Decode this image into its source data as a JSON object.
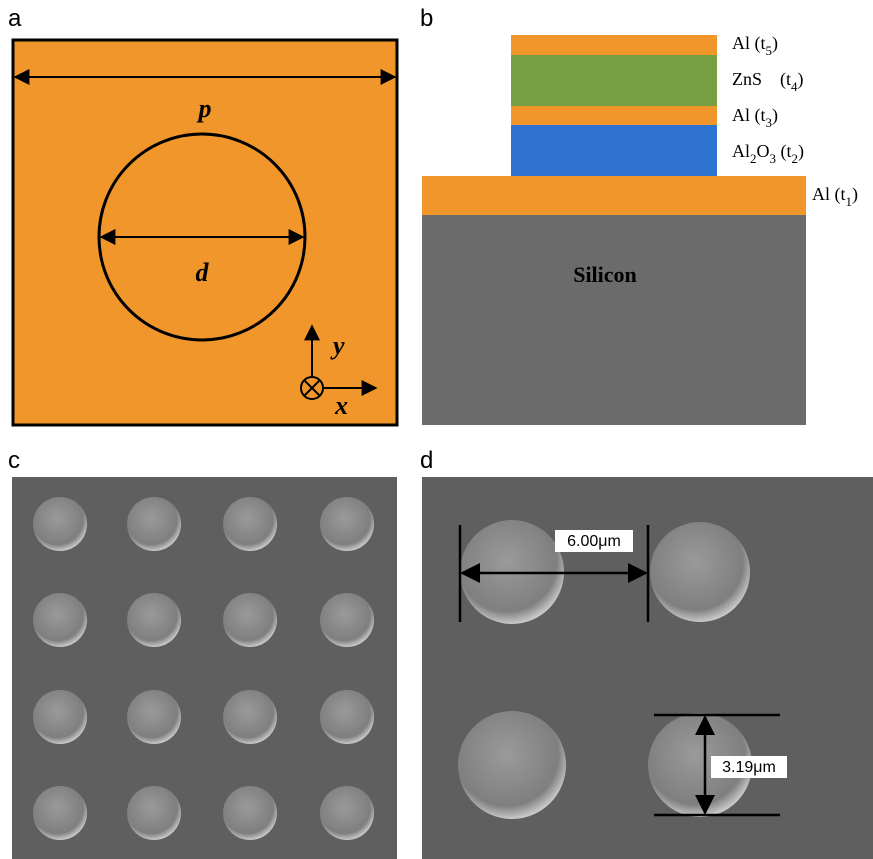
{
  "panels": {
    "a": {
      "label": "a",
      "period": "p",
      "diameter": "d",
      "y_axis": "y",
      "x_axis": "x"
    },
    "b": {
      "label": "b",
      "substrate": "Silicon",
      "layers": [
        {
          "label": [
            {
              "text": "Al (t"
            },
            {
              "sub": "5"
            },
            {
              "text": ")"
            }
          ]
        },
        {
          "label": [
            {
              "text": "ZnS    (t"
            },
            {
              "sub": "4"
            },
            {
              "text": ")"
            }
          ]
        },
        {
          "label": [
            {
              "text": "Al (t"
            },
            {
              "sub": "3"
            },
            {
              "text": ")"
            }
          ]
        },
        {
          "label": [
            {
              "text": "Al"
            },
            {
              "sub": "2"
            },
            {
              "text": "O"
            },
            {
              "sub": "3"
            },
            {
              "text": " (t"
            },
            {
              "sub": "2"
            },
            {
              "text": ")"
            }
          ]
        },
        {
          "label": [
            {
              "text": "Al (t"
            },
            {
              "sub": "1"
            },
            {
              "text": ")"
            }
          ]
        }
      ]
    },
    "c": {
      "label": "c"
    },
    "d": {
      "label": "d",
      "spacing": "6.00μm",
      "size": "3.19μm"
    }
  }
}
